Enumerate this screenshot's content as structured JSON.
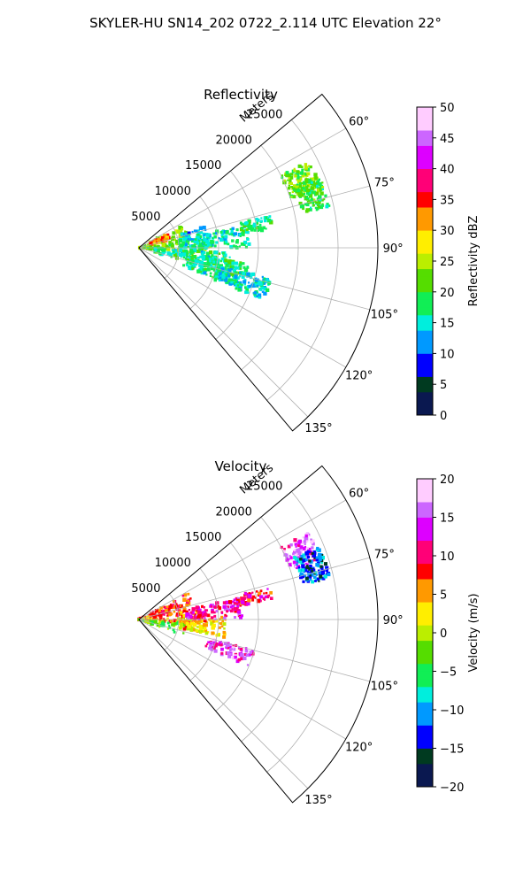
{
  "figure": {
    "suptitle": "SKYLER-HU  SN14_202  0722_2.114 UTC Elevation 22°"
  },
  "chart_data": [
    {
      "type": "heatmap",
      "subtype": "polar-sector (radar PPI)",
      "title": "Reflectivity",
      "radial_label": "Meters",
      "angle_range_deg": [
        50,
        140
      ],
      "radius_range": [
        0,
        30000
      ],
      "radial_ticks": [
        5000,
        10000,
        15000,
        20000,
        25000
      ],
      "radial_tick_labels": [
        "5000",
        "10000",
        "15000",
        "20000",
        "25000"
      ],
      "angle_ticks": [
        60,
        75,
        90,
        105,
        120,
        135
      ],
      "angle_tick_labels": [
        "60°",
        "75°",
        "90°",
        "105°",
        "120°",
        "135°"
      ],
      "grid": true,
      "colorbar": {
        "label": "Reflectivity dBZ",
        "range": [
          0,
          50
        ],
        "ticks": [
          0,
          5,
          10,
          15,
          20,
          25,
          30,
          35,
          40,
          45,
          50
        ],
        "tick_labels": [
          "0",
          "5",
          "10",
          "15",
          "20",
          "25",
          "30",
          "35",
          "40",
          "45",
          "50"
        ],
        "colormap": [
          "#0a1850",
          "#003a20",
          "#0000ff",
          "#0099ff",
          "#00eedd",
          "#11ee55",
          "#55dd00",
          "#bbee00",
          "#ffee00",
          "#ff9900",
          "#ff0000",
          "#ff0077",
          "#dd00ff",
          "#cc66ff",
          "#ffccff"
        ]
      },
      "echoes": [
        {
          "az": [
            62,
            82
          ],
          "r": [
            0,
            6500
          ],
          "value": 24
        },
        {
          "az": [
            65,
            75
          ],
          "r": [
            1500,
            4000
          ],
          "value": 33
        },
        {
          "az": [
            82,
            96
          ],
          "r": [
            0,
            9000
          ],
          "value": 22
        },
        {
          "az": [
            72,
            82
          ],
          "r": [
            5500,
            9000
          ],
          "value": 13
        },
        {
          "az": [
            78,
            90
          ],
          "r": [
            5000,
            14000
          ],
          "value": 16
        },
        {
          "az": [
            92,
            106
          ],
          "r": [
            2000,
            12000
          ],
          "value": 17
        },
        {
          "az": [
            98,
            112
          ],
          "r": [
            6000,
            14000
          ],
          "value": 17
        },
        {
          "az": [
            103,
            113
          ],
          "r": [
            10000,
            17000
          ],
          "value": 15
        },
        {
          "az": [
            76,
            82
          ],
          "r": [
            13000,
            17000
          ],
          "value": 18
        },
        {
          "az": [
            63,
            72
          ],
          "r": [
            20000,
            24000
          ],
          "value": 22
        },
        {
          "az": [
            68,
            78
          ],
          "r": [
            21000,
            24500
          ],
          "value": 20
        }
      ]
    },
    {
      "type": "heatmap",
      "subtype": "polar-sector (radar PPI)",
      "title": "Velocity",
      "radial_label": "Meters",
      "angle_range_deg": [
        50,
        140
      ],
      "radius_range": [
        0,
        30000
      ],
      "radial_ticks": [
        5000,
        10000,
        15000,
        20000,
        25000
      ],
      "radial_tick_labels": [
        "5000",
        "10000",
        "15000",
        "20000",
        "25000"
      ],
      "angle_ticks": [
        60,
        75,
        90,
        105,
        120,
        135
      ],
      "angle_tick_labels": [
        "60°",
        "75°",
        "90°",
        "105°",
        "120°",
        "135°"
      ],
      "grid": true,
      "colorbar": {
        "label": "Velocity (m/s)",
        "range": [
          -20,
          20
        ],
        "ticks": [
          -20,
          -15,
          -10,
          -5,
          0,
          5,
          10,
          15,
          20
        ],
        "tick_labels": [
          "−20",
          "−15",
          "−10",
          "−5",
          "0",
          "5",
          "10",
          "15",
          "20"
        ],
        "colormap": [
          "#0a1850",
          "#003a20",
          "#0000ff",
          "#0099ff",
          "#00eedd",
          "#11ee55",
          "#55dd00",
          "#bbee00",
          "#ffee00",
          "#ff9900",
          "#ff0000",
          "#ff0077",
          "#dd00ff",
          "#cc66ff",
          "#ffccff"
        ]
      },
      "echoes": [
        {
          "az": [
            60,
            80
          ],
          "r": [
            0,
            7000
          ],
          "value": 8
        },
        {
          "az": [
            80,
            95
          ],
          "r": [
            0,
            8000
          ],
          "value": 6
        },
        {
          "az": [
            95,
            110
          ],
          "r": [
            0,
            6000
          ],
          "value": -3
        },
        {
          "az": [
            88,
            102
          ],
          "r": [
            5000,
            11000
          ],
          "value": 3
        },
        {
          "az": [
            78,
            90
          ],
          "r": [
            6000,
            13000
          ],
          "value": 12
        },
        {
          "az": [
            105,
            113
          ],
          "r": [
            9000,
            15000
          ],
          "value": 14
        },
        {
          "az": [
            76,
            82
          ],
          "r": [
            13000,
            17000
          ],
          "value": 10
        },
        {
          "az": [
            63,
            72
          ],
          "r": [
            20000,
            24000
          ],
          "value": 15
        },
        {
          "az": [
            68,
            78
          ],
          "r": [
            21000,
            24500
          ],
          "value": -12
        }
      ]
    }
  ]
}
